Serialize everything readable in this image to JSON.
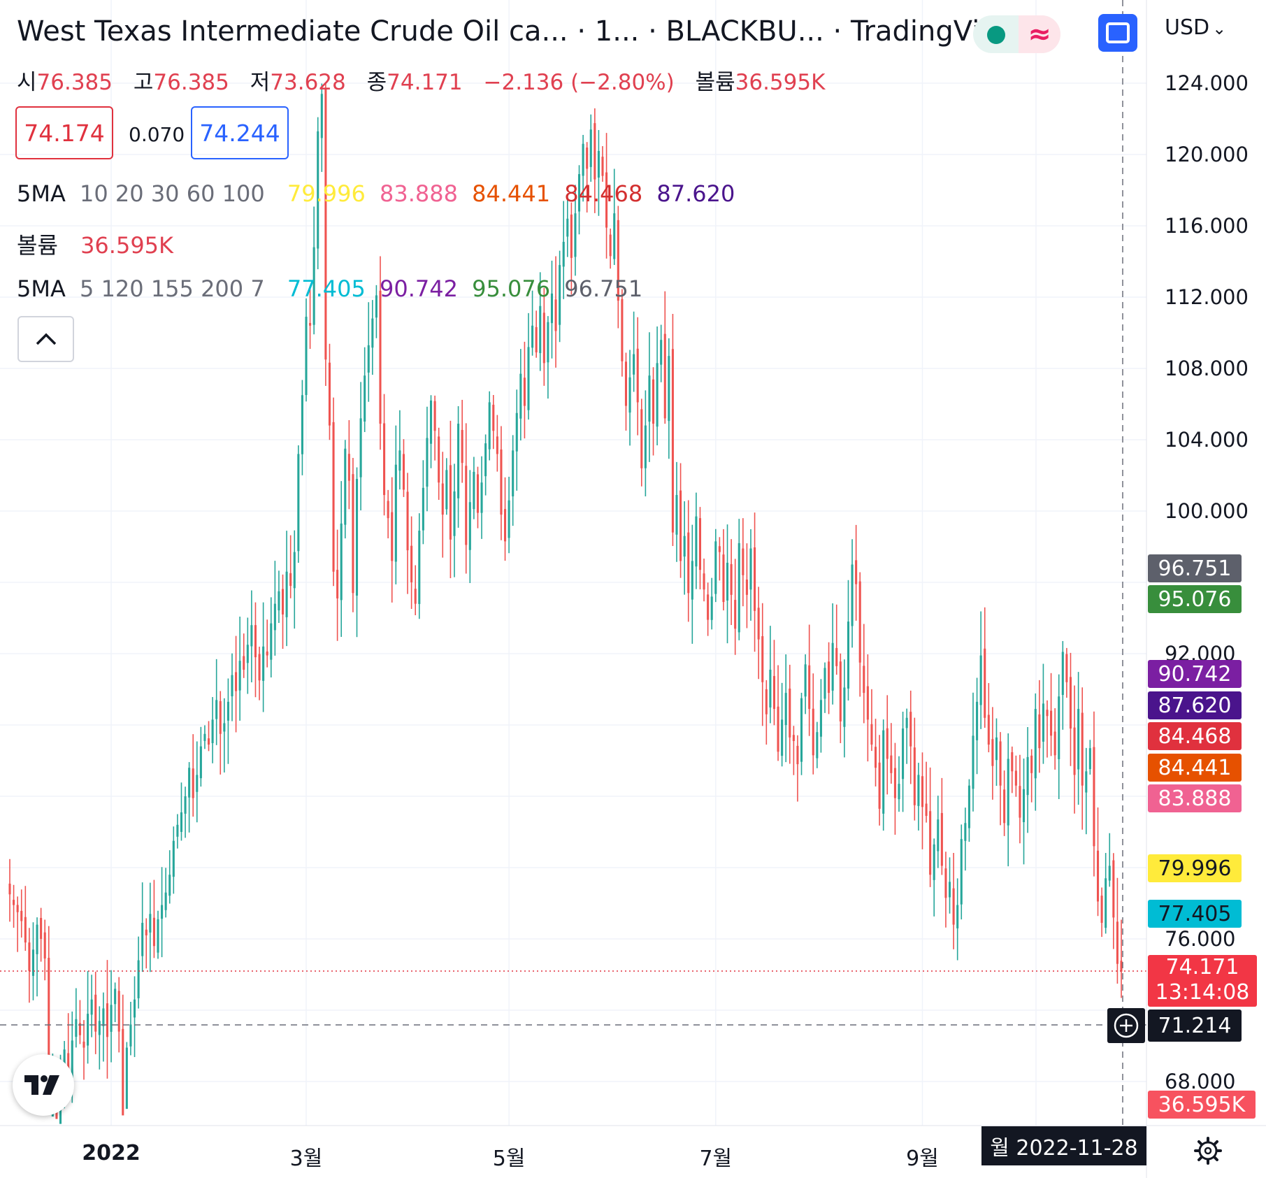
{
  "header": {
    "title": "West Texas Intermediate Crude Oil ca... · 1... · BLACKBU... · TradingVi...",
    "currency": "USD",
    "currency_caret": "⌄",
    "wave_glyph": "≈"
  },
  "ohlc": {
    "open_label": "시",
    "open": "76.385",
    "high_label": "고",
    "high": "76.385",
    "low_label": "저",
    "low": "73.628",
    "close_label": "종",
    "close": "74.171",
    "change": "−2.136 (−2.80%)",
    "volume_label": "볼륨",
    "volume": "36.595K"
  },
  "quote": {
    "bid": "74.174",
    "spread": "0.070",
    "ask": "74.244"
  },
  "ma1": {
    "label": "5MA",
    "periods": "10 20 30 60 100",
    "values": [
      "79.996",
      "83.888",
      "84.441",
      "84.468",
      "87.620"
    ],
    "colors": [
      "#ffeb3b",
      "#f06292",
      "#e65100",
      "#d32f2f",
      "#4a148c"
    ]
  },
  "volume_row": {
    "label": "볼륨",
    "value": "36.595K"
  },
  "ma2": {
    "label": "5MA",
    "periods": "5 120 155 200 7",
    "values": [
      "77.405",
      "90.742",
      "95.076",
      "96.751"
    ],
    "colors": [
      "#00bcd4",
      "#7b1fa2",
      "#388e3c",
      "#5d606b"
    ]
  },
  "price_axis": {
    "ticks": [
      "124.000",
      "120.000",
      "116.000",
      "112.000",
      "108.000",
      "104.000",
      "100.000",
      "92.000",
      "76.000",
      "68.000"
    ]
  },
  "axis_badges": [
    {
      "value": "96.751",
      "color": "#5d606b"
    },
    {
      "value": "95.076",
      "color": "#388e3c"
    },
    {
      "value": "90.742",
      "color": "#7b1fa2"
    },
    {
      "value": "87.620",
      "color": "#4a148c"
    },
    {
      "value": "84.468",
      "color": "#e0313e"
    },
    {
      "value": "84.441",
      "color": "#e65100"
    },
    {
      "value": "83.888",
      "color": "#f06292"
    },
    {
      "value": "79.996",
      "color": "#ffeb3b"
    },
    {
      "value": "77.405",
      "color": "#00bcd4"
    }
  ],
  "last_price": {
    "value": "74.171",
    "countdown": "13:14:08",
    "color": "#f23645"
  },
  "crosshair": {
    "price": "71.214",
    "date": "월 2022-11-28"
  },
  "volume_badge": {
    "value": "36.595K",
    "color": "#f7525f"
  },
  "time_axis": {
    "labels": [
      {
        "text": "2022",
        "bold": true,
        "idx": 26
      },
      {
        "text": "3월",
        "bold": false,
        "idx": 76
      },
      {
        "text": "5월",
        "bold": false,
        "idx": 128
      },
      {
        "text": "7월",
        "bold": false,
        "idx": 181
      },
      {
        "text": "9월",
        "bold": false,
        "idx": 234
      }
    ]
  },
  "chart_data": {
    "type": "candlestick",
    "title": "West Texas Intermediate Crude Oil ca... · 1... · BLACKBU... · TradingVi...",
    "interval": "1D",
    "ylim": [
      66.5,
      127
    ],
    "y_axis_side": "right",
    "up_color": "#26a69a",
    "down_color": "#ef5350",
    "x_start_date": "2021-11-24",
    "x_end_date": "2022-11-28",
    "series": [
      {
        "name": "Close",
        "values": [
          78.5,
          77.9,
          77.5,
          77.0,
          75.8,
          74.2,
          75.4,
          76.8,
          76.0,
          74.9,
          66.3,
          67.1,
          65.9,
          67.5,
          69.8,
          68.2,
          70.3,
          71.5,
          70.6,
          69.9,
          71.8,
          72.6,
          70.8,
          71.4,
          72.1,
          70.5,
          72.3,
          73.2,
          70.8,
          66.1,
          69.9,
          71.2,
          72.6,
          74.8,
          76.9,
          76.2,
          77.4,
          75.6,
          77.1,
          77.9,
          78.6,
          79.6,
          81.5,
          82.4,
          83.1,
          84.0,
          85.6,
          83.9,
          85.2,
          86.8,
          87.5,
          86.9,
          88.3,
          89.4,
          87.5,
          88.1,
          89.3,
          90.8,
          89.9,
          91.6,
          91.1,
          92.5,
          93.6,
          91.8,
          90.5,
          92.4,
          91.9,
          93.7,
          94.8,
          95.5,
          94.2,
          96.6,
          95.8,
          97.7,
          103.2,
          106.5,
          110.9,
          110.4,
          114.8,
          121.3,
          123.4,
          108.5,
          104.8,
          96.6,
          95.1,
          99.3,
          103.5,
          101.7,
          95.4,
          101.8,
          105.2,
          107.6,
          109.3,
          110.8,
          112.1,
          104.9,
          100.9,
          99.6,
          97.2,
          102.6,
          103.4,
          101.2,
          97.8,
          96.0,
          94.8,
          98.9,
          101.3,
          104.1,
          106.2,
          104.5,
          101.6,
          99.8,
          102.3,
          98.4,
          101.1,
          104.9,
          102.7,
          98.1,
          100.5,
          102.2,
          99.9,
          101.6,
          103.8,
          106.1,
          104.5,
          103.2,
          99.8,
          98.3,
          100.6,
          103.4,
          105.5,
          107.7,
          105.9,
          109.2,
          110.4,
          108.9,
          111.5,
          108.3,
          110.6,
          112.2,
          110.1,
          113.8,
          115.1,
          116.4,
          114.2,
          116.7,
          118.9,
          120.6,
          119.2,
          121.4,
          118.6,
          120.2,
          118.8,
          115.9,
          114.3,
          116.7,
          111.8,
          108.4,
          105.9,
          107.5,
          108.8,
          106.1,
          102.4,
          104.8,
          107.6,
          104.9,
          108.3,
          109.6,
          105.2,
          108.7,
          98.8,
          100.9,
          97.2,
          98.6,
          95.4,
          97.2,
          99.7,
          96.7,
          95.6,
          93.9,
          95.2,
          98.3,
          97.7,
          94.9,
          97.1,
          95.3,
          93.4,
          98.2,
          96.4,
          95.3,
          97.9,
          94.4,
          92.8,
          90.4,
          88.6,
          91.1,
          88.9,
          86.5,
          88.3,
          89.8,
          87.3,
          87.1,
          85.8,
          89.5,
          91.4,
          88.9,
          86.3,
          87.6,
          89.4,
          91.2,
          89.8,
          92.6,
          91.3,
          88.2,
          90.1,
          93.8,
          97.0,
          95.9,
          91.5,
          89.8,
          88.3,
          86.9,
          85.6,
          83.3,
          87.7,
          86.1,
          85.3,
          83.9,
          84.7,
          87.8,
          88.4,
          86.8,
          83.5,
          85.2,
          83.4,
          82.9,
          79.6,
          81.3,
          82.7,
          80.1,
          78.3,
          79.2,
          76.8,
          77.9,
          81.6,
          82.5,
          84.6,
          87.4,
          89.3,
          91.9,
          88.4,
          86.9,
          85.7,
          87.3,
          84.6,
          82.5,
          86.1,
          85.4,
          84.6,
          82.8,
          84.4,
          86.2,
          85.3,
          88.9,
          86.7,
          89.2,
          88.5,
          87.4,
          86.3,
          89.6,
          92.1,
          90.4,
          87.8,
          85.2,
          88.9,
          84.6,
          85.4,
          86.7,
          81.2,
          78.1,
          76.9,
          79.4,
          80.1,
          77.2,
          74.6,
          74.171
        ]
      }
    ]
  }
}
